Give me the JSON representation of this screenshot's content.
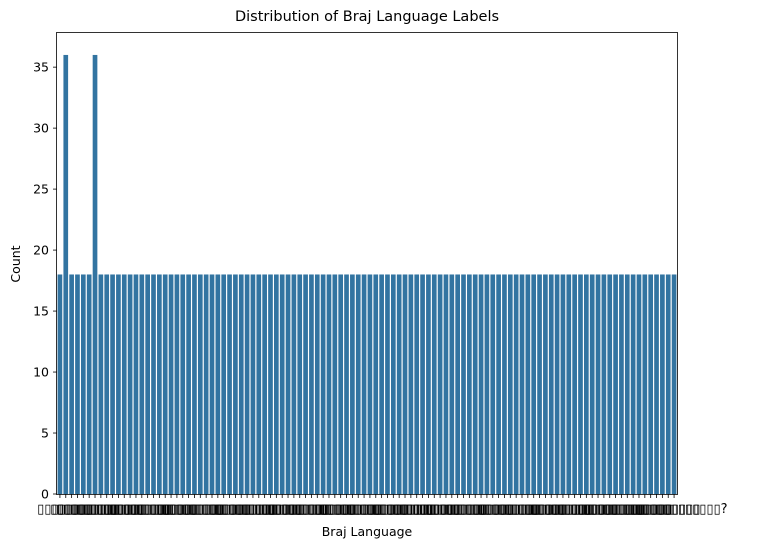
{
  "chart_data": {
    "type": "bar",
    "title": "Distribution of Braj Language Labels",
    "xlabel": "Braj Language",
    "ylabel": "Count",
    "ylim": [
      0,
      37.8
    ],
    "yticks": [
      0,
      5,
      10,
      15,
      20,
      25,
      30,
      35
    ],
    "grid": false,
    "legend": "none",
    "bar_color": "#3274a1",
    "category_count": 106,
    "values": [
      18,
      36,
      18,
      18,
      18,
      18,
      36,
      18,
      18,
      18,
      18,
      18,
      18,
      18,
      18,
      18,
      18,
      18,
      18,
      18,
      18,
      18,
      18,
      18,
      18,
      18,
      18,
      18,
      18,
      18,
      18,
      18,
      18,
      18,
      18,
      18,
      18,
      18,
      18,
      18,
      18,
      18,
      18,
      18,
      18,
      18,
      18,
      18,
      18,
      18,
      18,
      18,
      18,
      18,
      18,
      18,
      18,
      18,
      18,
      18,
      18,
      18,
      18,
      18,
      18,
      18,
      18,
      18,
      18,
      18,
      18,
      18,
      18,
      18,
      18,
      18,
      18,
      18,
      18,
      18,
      18,
      18,
      18,
      18,
      18,
      18,
      18,
      18,
      18,
      18,
      18,
      18,
      18,
      18,
      18,
      18,
      18,
      18,
      18,
      18,
      18,
      18,
      18,
      18,
      18,
      18
    ],
    "x_tick_label_glyph": "▯",
    "last_x_tick_label": "▯▯▯▯▯▯▯▯▯▯▯▯▯▯?"
  }
}
